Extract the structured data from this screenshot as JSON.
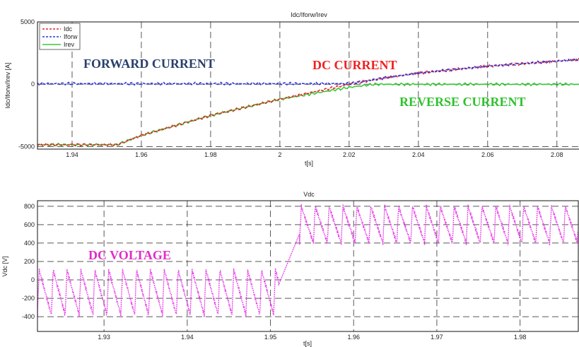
{
  "chart_data": [
    {
      "type": "line",
      "title": "Idc/Iforw/Irev",
      "xlabel": "t[s]",
      "ylabel": "Idc/Iforw/Irev [A]",
      "xlim": [
        1.93,
        2.087
      ],
      "ylim": [
        -5200,
        5000
      ],
      "xticks": [
        "1.94",
        "1.96",
        "1.98",
        "2",
        "2.02",
        "2.04",
        "2.06",
        "2.08"
      ],
      "yticks": [
        "-5000",
        "0",
        "5000"
      ],
      "legend": "top-left",
      "grid": true,
      "series": [
        {
          "name": "Idc",
          "color": "#e8262b",
          "style": "dashed",
          "x": [
            1.93,
            1.953,
            1.96,
            1.98,
            2.0,
            2.02,
            2.03,
            2.04,
            2.06,
            2.087
          ],
          "y": [
            -4850,
            -4850,
            -4100,
            -2500,
            -1200,
            0,
            500,
            900,
            1450,
            2000
          ]
        },
        {
          "name": "Iforw",
          "color": "#2f37d6",
          "style": "dashed",
          "x": [
            1.93,
            2.02,
            2.03,
            2.04,
            2.06,
            2.087
          ],
          "y": [
            50,
            50,
            500,
            900,
            1450,
            2000
          ]
        },
        {
          "name": "Irev",
          "color": "#36c936",
          "style": "solid",
          "x": [
            1.93,
            1.953,
            1.96,
            1.98,
            2.0,
            2.02,
            2.027,
            2.087
          ],
          "y": [
            -4850,
            -4850,
            -4100,
            -2500,
            -1200,
            -250,
            0,
            0
          ]
        }
      ],
      "annotations": [
        {
          "text": "FORWARD CURRENT",
          "color": "#2a3f6b"
        },
        {
          "text": "DC CURRENT",
          "color": "#ee2222"
        },
        {
          "text": "REVERSE CURRENT",
          "color": "#2fc12f"
        }
      ]
    },
    {
      "type": "line",
      "title": "Vdc",
      "xlabel": "t[s]",
      "ylabel": "Vdc [V]",
      "xlim": [
        1.922,
        1.987
      ],
      "ylim": [
        -560,
        860
      ],
      "xticks": [
        "1.93",
        "1.94",
        "1.95",
        "1.96",
        "1.97",
        "1.98"
      ],
      "yticks": [
        "-400",
        "-200",
        "0",
        "200",
        "400",
        "600",
        "800"
      ],
      "grid": true,
      "series": [
        {
          "name": "",
          "color": "#e83ee8",
          "style": "dotted",
          "segments": [
            {
              "x_start": 1.922,
              "x_end": 1.951,
              "period": 0.00167,
              "low": -380,
              "high": 110
            },
            {
              "x_start": 1.9535,
              "x_end": 1.987,
              "period": 0.00167,
              "low": 400,
              "high": 800
            }
          ],
          "transition": {
            "x": [
              1.951,
              1.9535
            ],
            "y": [
              -50,
              500
            ]
          }
        }
      ],
      "annotations": [
        {
          "text": "DC VOLTAGE",
          "color": "#e02cc8"
        }
      ]
    }
  ]
}
